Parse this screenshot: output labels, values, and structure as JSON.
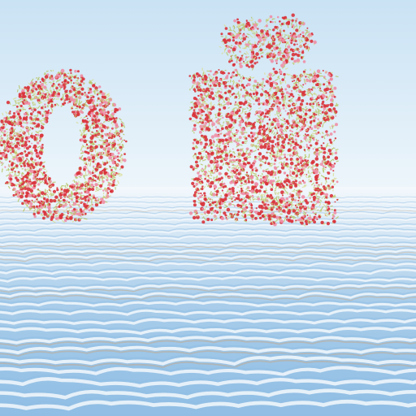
{
  "scene": {
    "letters": [
      "о",
      "й"
    ],
    "colors": {
      "sky_top": "#c9e2f4",
      "sky_horizon": "#eef6fb",
      "water_light": "#f3f8fc",
      "water_blue": "#a9cdea",
      "water_deep": "#8fbde4",
      "ripple_sand": "#c9a47c",
      "foliage_green": "#b7c76a",
      "foliage_light": "#d9dd96",
      "blossom_red": "#d9323a",
      "blossom_pink": "#ee8fa6"
    }
  }
}
